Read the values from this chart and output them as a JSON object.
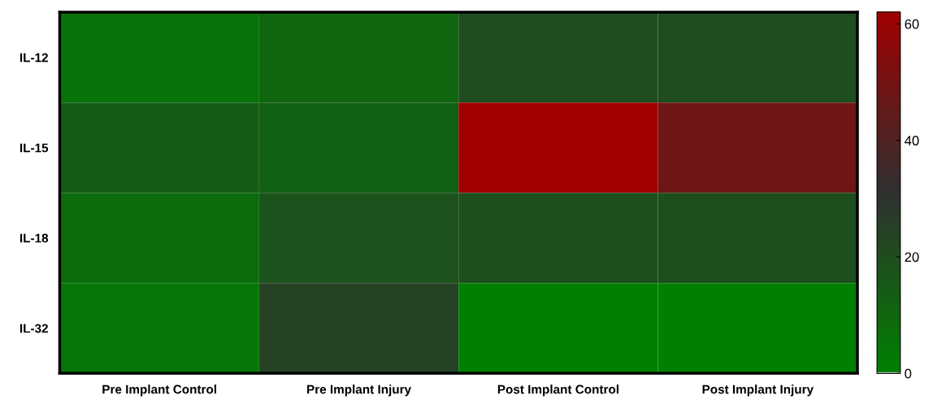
{
  "chart_data": {
    "type": "heatmap",
    "categories": [
      "Pre Implant Control",
      "Pre Implant Injury",
      "Post Implant Control",
      "Post Implant Injury"
    ],
    "y_categories": [
      "IL-12",
      "IL-15",
      "IL-18",
      "IL-32"
    ],
    "cells": [
      [
        5,
        10,
        20,
        20
      ],
      [
        14,
        12,
        62,
        48
      ],
      [
        8,
        18,
        19,
        19
      ],
      [
        4,
        24,
        0,
        0
      ]
    ],
    "clim": [
      0,
      62
    ],
    "cticks": [
      0,
      20,
      40,
      60
    ],
    "colors": [
      "#008000",
      "#303030",
      "#a00000"
    ]
  }
}
